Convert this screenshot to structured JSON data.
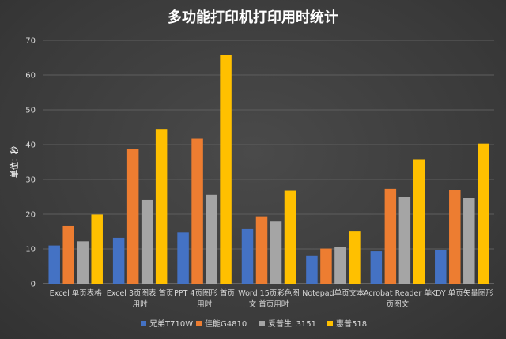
{
  "chart_data": {
    "type": "bar",
    "title": "多功能打印机打印用时统计",
    "ylabel": "单位：秒",
    "xlabel": "",
    "ylim": [
      0,
      70
    ],
    "yticks": [
      0,
      10,
      20,
      30,
      40,
      50,
      60,
      70
    ],
    "grid": true,
    "legend": "bottom",
    "categories": [
      [
        "Excel 单页表格"
      ],
      [
        "Excel 3页图表 首页",
        "用时"
      ],
      [
        "PPT 4页图形 首页",
        "用时"
      ],
      [
        "Word 15页彩色图",
        "文 首页用时"
      ],
      [
        "Notepad单页文本"
      ],
      [
        "Acrobat Reader 单",
        "页图文"
      ],
      [
        "KDY 单页矢量图形"
      ]
    ],
    "series": [
      {
        "name": "兄弟T710W",
        "color": "#4472c4",
        "values": [
          11,
          13.2,
          14.7,
          15.7,
          8,
          9.3,
          9.6
        ]
      },
      {
        "name": "佳能G4810",
        "color": "#ed7d31",
        "values": [
          16.6,
          38.8,
          41.7,
          19.4,
          10.1,
          27.3,
          26.9
        ]
      },
      {
        "name": "爱普生L3151",
        "color": "#a5a5a5",
        "values": [
          12.2,
          24.1,
          25.5,
          17.9,
          10.6,
          25,
          24.6
        ]
      },
      {
        "name": "惠普518",
        "color": "#ffc000",
        "values": [
          19.9,
          44.5,
          65.8,
          26.7,
          15.2,
          35.8,
          40.3
        ]
      }
    ]
  }
}
